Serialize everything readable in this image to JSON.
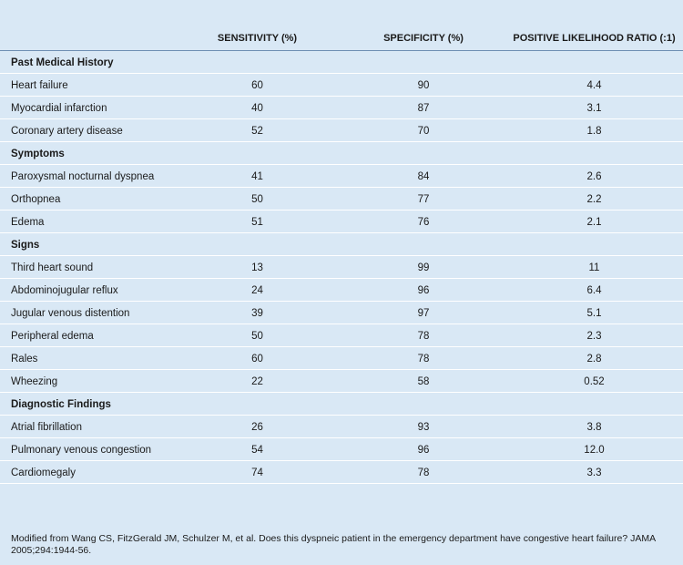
{
  "header": {
    "columns": [
      "SENSITIVITY (%)",
      "SPECIFICITY (%)",
      "POSITIVE LIKELIHOOD RATIO (:1)"
    ]
  },
  "sections": [
    {
      "title": "Past Medical History",
      "rows": [
        [
          "Heart failure",
          "60",
          "90",
          "4.4"
        ],
        [
          "Myocardial infarction",
          "40",
          "87",
          "3.1"
        ],
        [
          "Coronary artery disease",
          "52",
          "70",
          "1.8"
        ]
      ]
    },
    {
      "title": "Symptoms",
      "rows": [
        [
          "Paroxysmal nocturnal dyspnea",
          "41",
          "84",
          "2.6"
        ],
        [
          "Orthopnea",
          "50",
          "77",
          "2.2"
        ],
        [
          "Edema",
          "51",
          "76",
          "2.1"
        ]
      ]
    },
    {
      "title": "Signs",
      "rows": [
        [
          "Third heart sound",
          "13",
          "99",
          "11"
        ],
        [
          "Abdominojugular reflux",
          "24",
          "96",
          "6.4"
        ],
        [
          "Jugular venous distention",
          "39",
          "97",
          "5.1"
        ],
        [
          "Peripheral edema",
          "50",
          "78",
          "2.3"
        ],
        [
          "Rales",
          "60",
          "78",
          "2.8"
        ],
        [
          "Wheezing",
          "22",
          "58",
          "0.52"
        ]
      ]
    },
    {
      "title": "Diagnostic Findings",
      "rows": [
        [
          "Atrial fibrillation",
          "26",
          "93",
          "3.8"
        ],
        [
          "Pulmonary venous congestion",
          "54",
          "96",
          "12.0"
        ],
        [
          "Cardiomegaly",
          "74",
          "78",
          "3.3"
        ]
      ]
    }
  ],
  "footnote": "Modified from Wang CS, FitzGerald JM, Schulzer M, et al. Does this dyspneic patient in the emergency department have congestive heart failure? JAMA 2005;294:1944-56."
}
